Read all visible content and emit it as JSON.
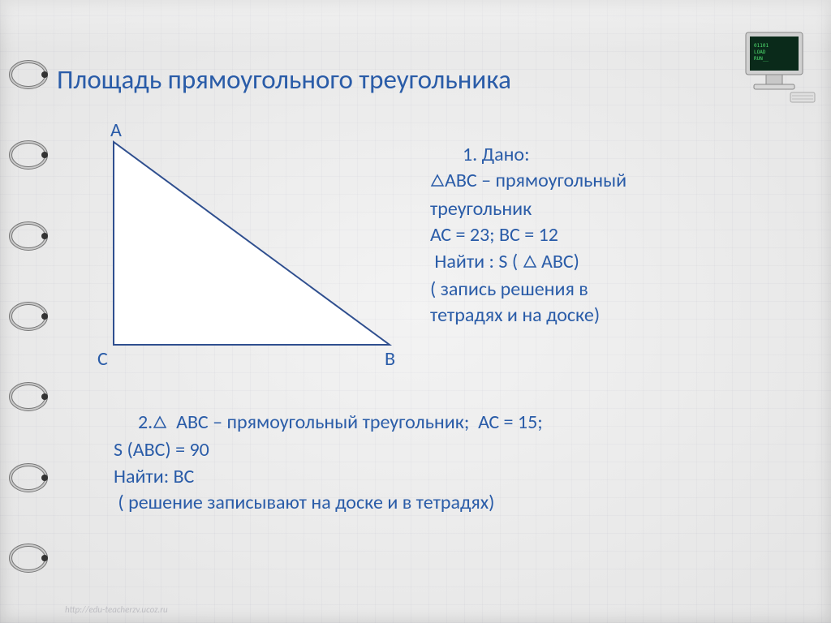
{
  "title": "Площадь прямоугольного треугольника",
  "diagram": {
    "labels": {
      "A": "A",
      "B": "B",
      "C": "C"
    },
    "vertices": {
      "A": [
        40,
        30
      ],
      "C": [
        40,
        280
      ],
      "B": [
        380,
        280
      ]
    },
    "stroke_color": "#2f4f8f",
    "stroke_width": 2,
    "fill_color": "#ffffff"
  },
  "problem1": {
    "heading": "1. Дано:",
    "line1_after_tri": "АВС – прямоугольный",
    "line2": "треугольник",
    "line3": "АС = 23; ВС = 12",
    "line4_before": " Найти : S ( ",
    "line4_after": " АВС)",
    "line5": "( запись решения в",
    "line6": "тетрадях и на доске)"
  },
  "problem2": {
    "prefix": "2.",
    "l1_after_tri": "  АВС – прямоугольный треугольник;  АС = 15;",
    "l2": "S (АВС) = 90",
    "l3": "Найти: ВС",
    "l4": " ( решение записывают на доске и в тетрадях)"
  },
  "triangle_symbol": {
    "stroke": "#2a5ca8",
    "size": 18
  },
  "footer_text": "http://edu-teacherzv.ucoz.ru",
  "colors": {
    "text": "#2a5ca8",
    "background": "#f0f0f0"
  }
}
